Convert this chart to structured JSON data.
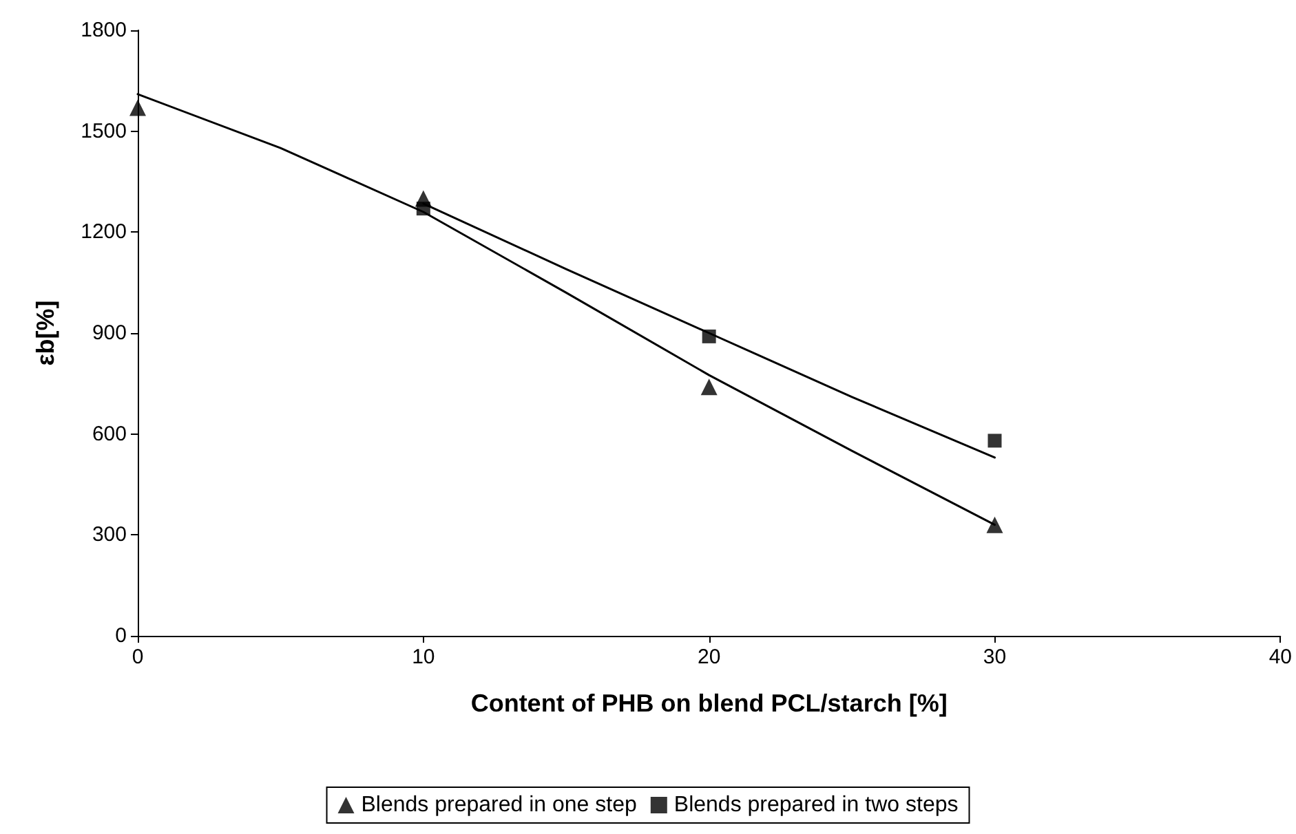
{
  "chart_data": {
    "type": "scatter",
    "xlabel": "Content of PHB on blend PCL/starch [%]",
    "ylabel": "εb[%]",
    "xlim": [
      0,
      40
    ],
    "xticks": [
      0,
      10,
      20,
      30,
      40
    ],
    "ylim": [
      0,
      1800
    ],
    "yticks": [
      0,
      300,
      600,
      900,
      1200,
      1500,
      1800
    ],
    "grid": false,
    "legend": "bottom",
    "series": [
      {
        "name": "Blends prepared in one step",
        "marker": "triangle",
        "color": "#000000",
        "x": [
          0,
          10,
          20,
          30
        ],
        "values": [
          1570,
          1300,
          740,
          330
        ]
      },
      {
        "name": "Blends prepared in two steps",
        "marker": "square",
        "color": "#000000",
        "x": [
          10,
          20,
          30
        ],
        "values": [
          1270,
          890,
          580
        ]
      },
      {
        "type": "line",
        "marker": "none",
        "line_style": "solid",
        "color": "#000000",
        "x": [
          0,
          5,
          10,
          15,
          20,
          25,
          30
        ],
        "values": [
          1610,
          1450,
          1260,
          1020,
          775,
          550,
          330
        ]
      },
      {
        "type": "line",
        "marker": "none",
        "line_style": "solid",
        "color": "#000000",
        "x": [
          10,
          15,
          20,
          25,
          30
        ],
        "values": [
          1285,
          1090,
          900,
          710,
          530
        ]
      }
    ]
  }
}
